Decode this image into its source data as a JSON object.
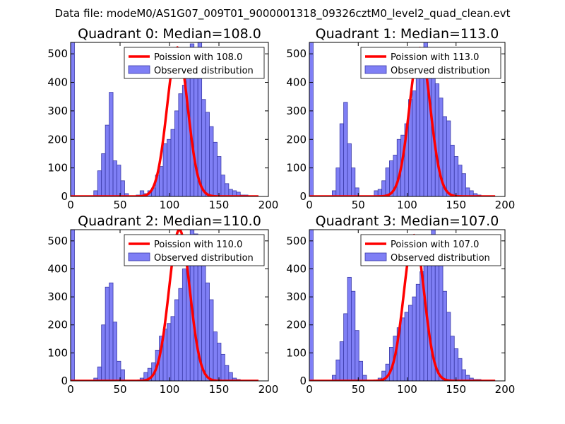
{
  "figure": {
    "suptitle": "Data file: modeM0/AS1G07_009T01_9000001318_09326cztM0_level2_quad_clean.evt",
    "colors": {
      "bars": "#7f7ff5",
      "bar_edge": "#3a3aa8",
      "poisson": "#ff0000",
      "axis": "#000000"
    }
  },
  "chart_data": [
    {
      "type": "bar",
      "title": "Quadrant 0: Median=108.0",
      "xlim": [
        0,
        200
      ],
      "ylim": [
        0,
        540
      ],
      "xticks": [
        0,
        50,
        100,
        150,
        200
      ],
      "yticks": [
        0,
        100,
        200,
        300,
        400,
        500
      ],
      "legend": [
        "Poission with 108.0",
        "Observed distribution"
      ],
      "poisson_mean": 108,
      "poisson_peak": 522,
      "bin_width": 3.9,
      "bin_start": 0,
      "counts": [
        540,
        0,
        0,
        0,
        0,
        0,
        20,
        90,
        150,
        250,
        365,
        125,
        110,
        55,
        10,
        0,
        0,
        5,
        20,
        10,
        20,
        30,
        75,
        105,
        185,
        200,
        235,
        300,
        360,
        390,
        490,
        535,
        500,
        555,
        340,
        295,
        245,
        190,
        140,
        75,
        45,
        25,
        20,
        15,
        5,
        5,
        0,
        0,
        0
      ],
      "legend_pos": "upper-right"
    },
    {
      "type": "bar",
      "title": "Quadrant 1: Median=113.0",
      "xlim": [
        0,
        200
      ],
      "ylim": [
        0,
        540
      ],
      "xticks": [
        0,
        50,
        100,
        150,
        200
      ],
      "yticks": [
        0,
        100,
        200,
        300,
        400,
        500
      ],
      "legend": [
        "Poission with 113.0",
        "Observed distribution"
      ],
      "poisson_mean": 113,
      "poisson_peak": 520,
      "bin_width": 3.9,
      "bin_start": 0,
      "counts": [
        540,
        0,
        0,
        0,
        0,
        0,
        20,
        100,
        255,
        330,
        185,
        100,
        30,
        0,
        0,
        0,
        0,
        20,
        25,
        55,
        100,
        125,
        145,
        200,
        215,
        255,
        340,
        370,
        450,
        505,
        555,
        505,
        470,
        395,
        345,
        280,
        265,
        180,
        140,
        110,
        80,
        30,
        20,
        10,
        5,
        0,
        0,
        0,
        0
      ],
      "legend_pos": "upper-right"
    },
    {
      "type": "bar",
      "title": "Quadrant 2: Median=110.0",
      "xlim": [
        0,
        200
      ],
      "ylim": [
        0,
        540
      ],
      "xticks": [
        0,
        50,
        100,
        150,
        200
      ],
      "yticks": [
        0,
        100,
        200,
        300,
        400,
        500
      ],
      "legend": [
        "Poission with 110.0",
        "Observed distribution"
      ],
      "poisson_mean": 110,
      "poisson_peak": 540,
      "bin_width": 3.9,
      "bin_start": 0,
      "counts": [
        560,
        0,
        0,
        0,
        0,
        0,
        10,
        50,
        200,
        335,
        350,
        210,
        70,
        40,
        0,
        0,
        0,
        0,
        10,
        30,
        45,
        65,
        110,
        160,
        185,
        205,
        230,
        290,
        330,
        400,
        480,
        545,
        525,
        480,
        425,
        350,
        290,
        175,
        135,
        95,
        55,
        30,
        10,
        5,
        0,
        0,
        0,
        0,
        0
      ],
      "legend_pos": "upper-right"
    },
    {
      "type": "bar",
      "title": "Quadrant 3: Median=107.0",
      "xlim": [
        0,
        200
      ],
      "ylim": [
        0,
        540
      ],
      "xticks": [
        0,
        50,
        100,
        150,
        200
      ],
      "yticks": [
        0,
        100,
        200,
        300,
        400,
        500
      ],
      "legend": [
        "Poission with 107.0",
        "Observed distribution"
      ],
      "poisson_mean": 107,
      "poisson_peak": 520,
      "bin_width": 3.9,
      "bin_start": 0,
      "counts": [
        560,
        0,
        0,
        0,
        0,
        0,
        20,
        75,
        140,
        240,
        370,
        320,
        180,
        70,
        20,
        0,
        0,
        0,
        10,
        35,
        60,
        120,
        160,
        190,
        225,
        245,
        270,
        300,
        345,
        390,
        440,
        500,
        545,
        495,
        420,
        320,
        245,
        160,
        115,
        80,
        40,
        20,
        10,
        5,
        5,
        0,
        0,
        0,
        0
      ],
      "legend_pos": "upper-right"
    }
  ]
}
